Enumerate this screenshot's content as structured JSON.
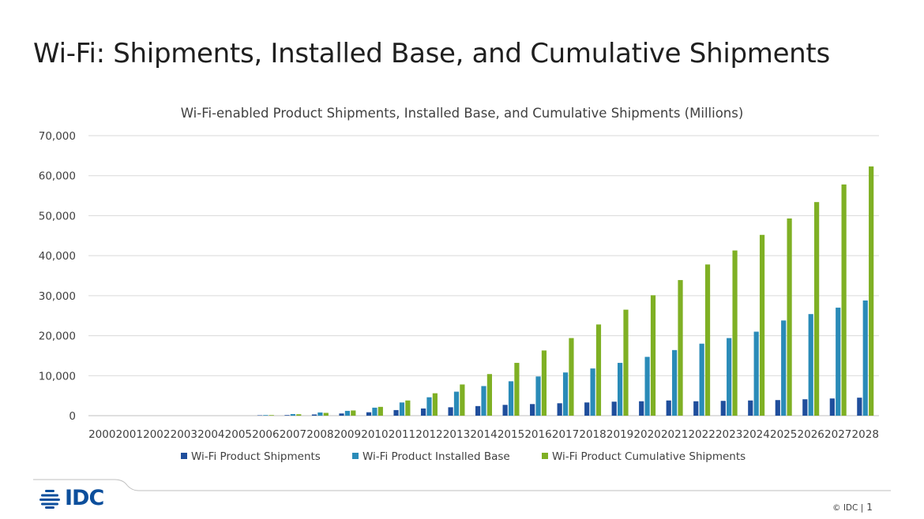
{
  "slide": {
    "title": "Wi-Fi: Shipments, Installed Base, and Cumulative Shipments",
    "copyright": "© IDC |",
    "page_number": "1",
    "logo_text": "IDC"
  },
  "colors": {
    "shipments": "#1f4e9c",
    "installed_base": "#2a8bb8",
    "cumulative": "#7fb024",
    "grid": "#d9d9d9",
    "logo": "#0d4f9c"
  },
  "chart_data": {
    "type": "bar",
    "title": "Wi-Fi-enabled Product Shipments, Installed Base, and Cumulative Shipments (Millions)",
    "xlabel": "",
    "ylabel": "",
    "ylim": [
      0,
      70000
    ],
    "yticks": [
      "0",
      "10,000",
      "20,000",
      "30,000",
      "40,000",
      "50,000",
      "60,000",
      "70,000"
    ],
    "grid": true,
    "legend_position": "bottom",
    "categories": [
      "2000",
      "2001",
      "2002",
      "2003",
      "2004",
      "2005",
      "2006",
      "2007",
      "2008",
      "2009",
      "2010",
      "2011",
      "2012",
      "2013",
      "2014",
      "2015",
      "2016",
      "2017",
      "2018",
      "2019",
      "2020",
      "2021",
      "2022",
      "2023",
      "2024",
      "2025",
      "2026",
      "2027",
      "2028"
    ],
    "series": [
      {
        "name": "Wi-Fi Product Shipments",
        "values": [
          0,
          0,
          0,
          0,
          0,
          0,
          100,
          150,
          300,
          550,
          850,
          1400,
          1800,
          2100,
          2400,
          2700,
          2900,
          3100,
          3300,
          3500,
          3600,
          3800,
          3600,
          3700,
          3800,
          3900,
          4100,
          4300,
          4500
        ]
      },
      {
        "name": "Wi-Fi Product Installed Base",
        "values": [
          0,
          0,
          0,
          0,
          0,
          0,
          150,
          400,
          800,
          1200,
          2000,
          3300,
          4600,
          6000,
          7400,
          8600,
          9800,
          10800,
          11800,
          13200,
          14700,
          16400,
          18000,
          19400,
          21000,
          23800,
          25400,
          27000,
          28800
        ]
      },
      {
        "name": "Wi-Fi Product Cumulative Shipments",
        "values": [
          0,
          0,
          0,
          0,
          0,
          0,
          150,
          350,
          700,
          1300,
          2200,
          3800,
          5600,
          7800,
          10400,
          13200,
          16300,
          19400,
          22800,
          26500,
          30100,
          33900,
          37800,
          41300,
          45200,
          49300,
          53400,
          57800,
          62300
        ]
      }
    ]
  }
}
